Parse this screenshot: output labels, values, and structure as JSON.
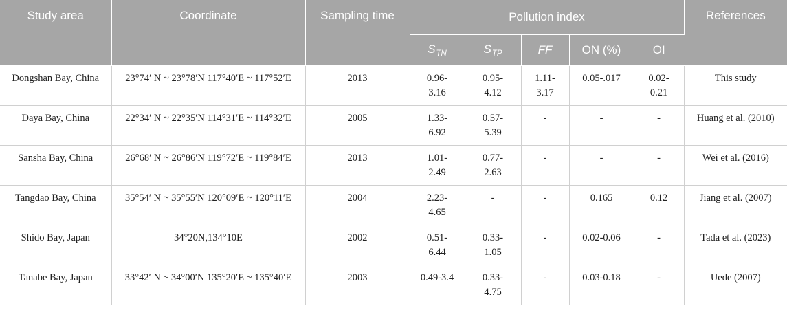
{
  "header": {
    "study_area": "Study area",
    "coordinate": "Coordinate",
    "sampling_time": "Sampling time",
    "pollution_index": "Pollution index",
    "references": "References",
    "stn_main": "S",
    "stn_sub": "TN",
    "stp_main": "S",
    "stp_sub": "TP",
    "ff": "FF",
    "on": "ON (%)",
    "oi": "OI"
  },
  "rows": [
    {
      "area": "Dongshan Bay, China",
      "coord": "23°74′ N ~ 23°78′N 117°40′E ~ 117°52′E",
      "time": "2013",
      "stn": [
        "0.96-",
        "3.16"
      ],
      "stp": [
        "0.95-",
        "4.12"
      ],
      "ff": [
        "1.11-",
        "3.17"
      ],
      "on": [
        "0.05-.017",
        ""
      ],
      "oi": [
        "0.02-",
        "0.21"
      ],
      "ref": "This study"
    },
    {
      "area": "Daya Bay, China",
      "coord": "22°34′ N ~ 22°35′N 114°31′E ~ 114°32′E",
      "time": "2005",
      "stn": [
        "1.33-",
        "6.92"
      ],
      "stp": [
        "0.57-",
        "5.39"
      ],
      "ff": [
        "-",
        ""
      ],
      "on": [
        "-",
        ""
      ],
      "oi": [
        "-",
        ""
      ],
      "ref": "Huang et al. (2010)"
    },
    {
      "area": "Sansha Bay, China",
      "coord": "26°68′ N ~ 26°86′N 119°72′E ~ 119°84′E",
      "time": "2013",
      "stn": [
        "1.01-",
        "2.49"
      ],
      "stp": [
        "0.77-",
        "2.63"
      ],
      "ff": [
        "-",
        ""
      ],
      "on": [
        "-",
        ""
      ],
      "oi": [
        "-",
        ""
      ],
      "ref": "Wei et al. (2016)"
    },
    {
      "area": "Tangdao Bay, China",
      "coord": "35°54′ N ~ 35°55′N 120°09′E ~ 120°11′E",
      "time": "2004",
      "stn": [
        "2.23-",
        "4.65"
      ],
      "stp": [
        "-",
        ""
      ],
      "ff": [
        "-",
        ""
      ],
      "on": [
        "0.165",
        ""
      ],
      "oi": [
        "0.12",
        ""
      ],
      "ref": "Jiang et al. (2007)"
    },
    {
      "area": "Shido Bay, Japan",
      "coord": "34°20N,134°10E",
      "time": "2002",
      "stn": [
        "0.51-",
        "6.44"
      ],
      "stp": [
        "0.33-",
        "1.05"
      ],
      "ff": [
        "-",
        ""
      ],
      "on": [
        "0.02-0.06",
        ""
      ],
      "oi": [
        "-",
        ""
      ],
      "ref": "Tada et al. (2023)"
    },
    {
      "area": "Tanabe Bay, Japan",
      "coord": "33°42′ N ~ 34°00′N 135°20′E ~ 135°40′E",
      "time": "2003",
      "stn": [
        "0.49-3.4",
        ""
      ],
      "stp": [
        "0.33-",
        "4.75"
      ],
      "ff": [
        "-",
        ""
      ],
      "on": [
        "0.03-0.18",
        ""
      ],
      "oi": [
        "-",
        ""
      ],
      "ref": "Uede (2007)"
    }
  ]
}
